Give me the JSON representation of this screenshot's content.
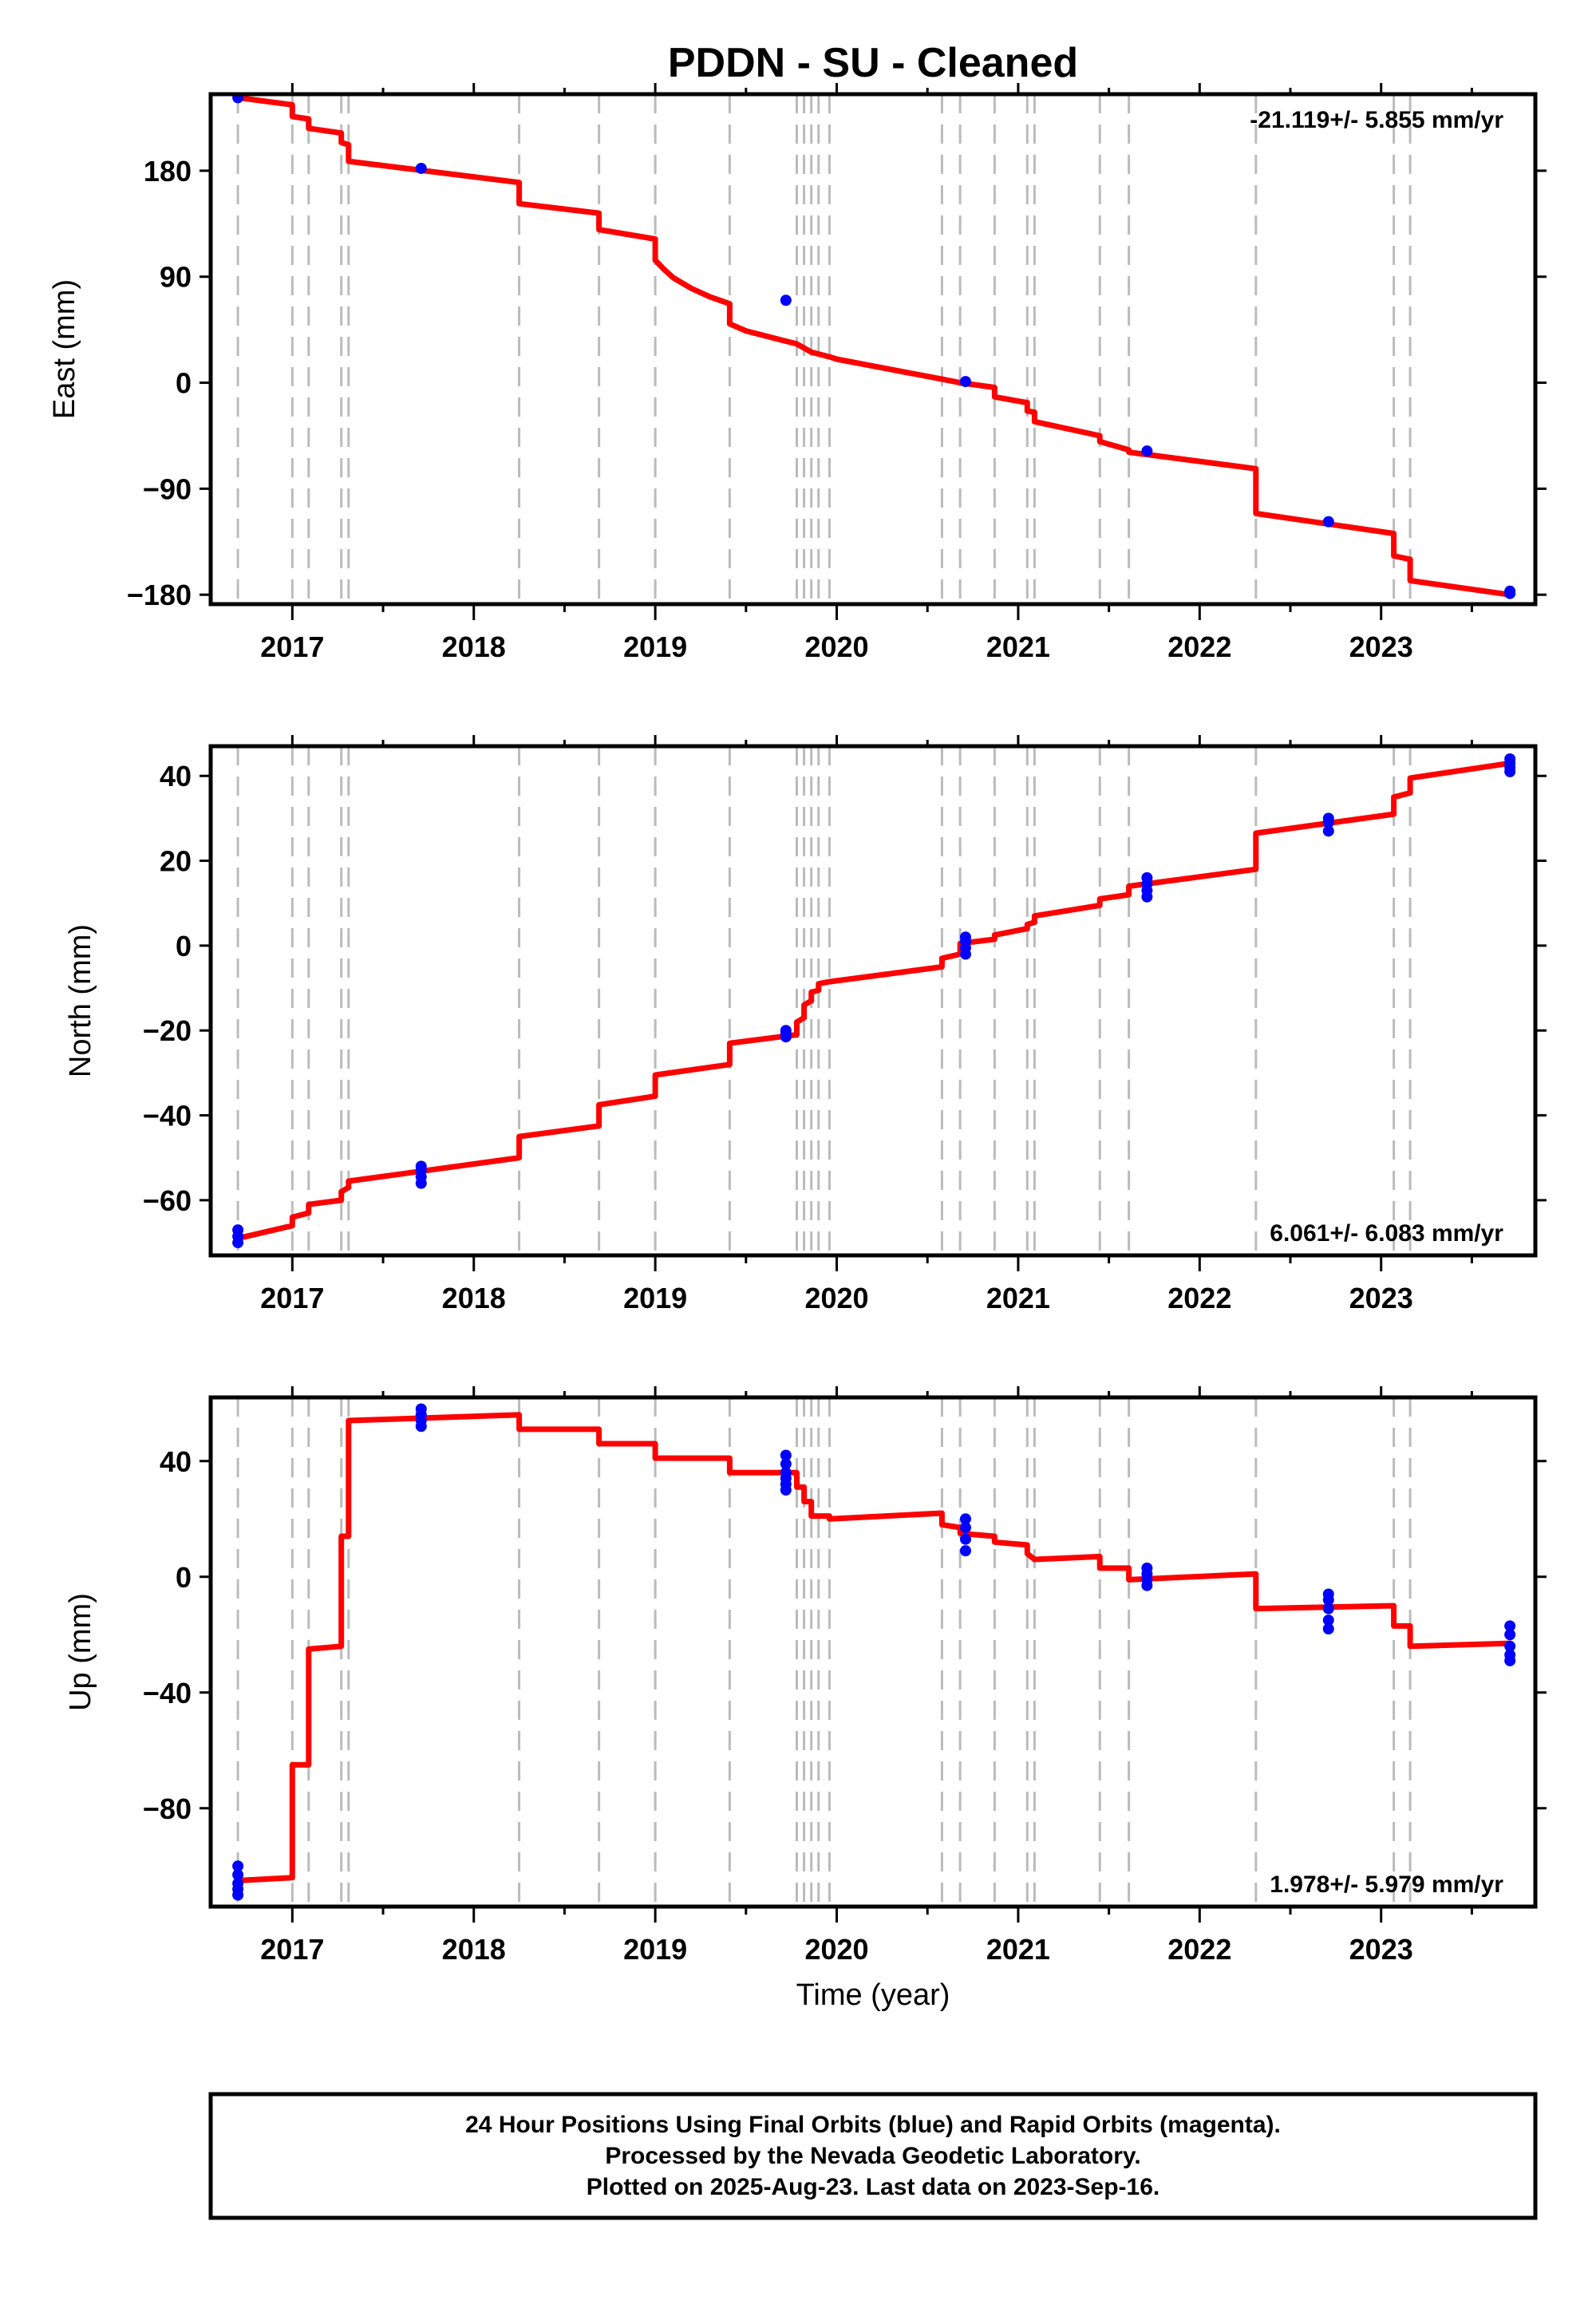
{
  "title": "PDDN  - SU - Cleaned",
  "x_axis_label": "Time (year)",
  "footer": {
    "line1": "24 Hour Positions Using Final Orbits (blue) and Rapid Orbits (magenta).",
    "line2": "Processed by the Nevada Geodetic Laboratory.",
    "line3": "Plotted on 2025-Aug-23. Last data on 2023-Sep-16."
  },
  "colors": {
    "model_line": "#ff0000",
    "final_orbit_points": "#0000ff",
    "event_lines": "#bbbbbb",
    "frame": "#000000"
  },
  "chart_data": [
    {
      "type": "line",
      "panel": "east",
      "ylabel": "East (mm)",
      "rate_label": "-21.119+/- 5.855 mm/yr",
      "rate_position": "top-right",
      "xlim": [
        2016.55,
        2023.85
      ],
      "ylim": [
        -188,
        245
      ],
      "x_ticks": [
        2017,
        2018,
        2019,
        2020,
        2021,
        2022,
        2023
      ],
      "y_ticks": [
        180,
        90,
        0,
        -90,
        -180
      ],
      "y_tick_labels": [
        "180",
        "90",
        "0",
        "−90",
        "−180"
      ],
      "event_lines_x": [
        2016.7,
        2017.0,
        2017.09,
        2017.27,
        2017.31,
        2018.25,
        2018.69,
        2019.0,
        2019.41,
        2019.78,
        2019.82,
        2019.86,
        2019.9,
        2019.96,
        2020.58,
        2020.68,
        2020.87,
        2021.05,
        2021.09,
        2021.45,
        2021.61,
        2022.31,
        2023.07,
        2023.16
      ],
      "series": [
        {
          "name": "Final Orbits",
          "kind": "points",
          "x": [
            2016.7,
            2017.71,
            2019.72,
            2020.71,
            2021.71,
            2022.71,
            2023.71,
            2023.71
          ],
          "y": [
            242,
            182,
            70,
            1,
            -58,
            -118,
            -179,
            -177
          ]
        },
        {
          "name": "model",
          "kind": "line",
          "x": [
            2016.7,
            2017.0,
            2017.0,
            2017.09,
            2017.09,
            2017.27,
            2017.27,
            2017.31,
            2017.31,
            2018.25,
            2018.25,
            2018.69,
            2018.69,
            2019.0,
            2019.0,
            2019.05,
            2019.1,
            2019.2,
            2019.3,
            2019.41,
            2019.41,
            2019.5,
            2019.6,
            2019.7,
            2019.78,
            2019.86,
            2019.96,
            2020.0,
            2020.58,
            2020.68,
            2020.87,
            2020.87,
            2021.05,
            2021.05,
            2021.09,
            2021.09,
            2021.45,
            2021.45,
            2021.61,
            2021.61,
            2022.31,
            2022.31,
            2023.07,
            2023.07,
            2023.16,
            2023.16,
            2023.71
          ],
          "y": [
            242,
            236,
            226,
            224,
            216,
            212,
            204,
            202,
            188,
            170,
            152,
            144,
            130,
            122,
            104,
            96,
            89,
            80,
            73,
            67,
            50,
            44,
            40,
            36,
            33,
            26,
            22,
            20,
            3,
            0,
            -4,
            -12,
            -17,
            -24,
            -25,
            -33,
            -45,
            -50,
            -57,
            -59,
            -73,
            -111,
            -128,
            -147,
            -150,
            -168,
            -180
          ]
        }
      ]
    },
    {
      "type": "line",
      "panel": "north",
      "ylabel": "North (mm)",
      "rate_label": "6.061+/- 6.083 mm/yr",
      "rate_position": "bottom-right",
      "xlim": [
        2016.55,
        2023.85
      ],
      "ylim": [
        -73,
        47
      ],
      "x_ticks": [
        2017,
        2018,
        2019,
        2020,
        2021,
        2022,
        2023
      ],
      "y_ticks": [
        40,
        20,
        0,
        -20,
        -40,
        -60
      ],
      "y_tick_labels": [
        "40",
        "20",
        "0",
        "−20",
        "−40",
        "−60"
      ],
      "event_lines_x": [
        2016.7,
        2017.0,
        2017.09,
        2017.27,
        2017.31,
        2018.25,
        2018.69,
        2019.0,
        2019.41,
        2019.78,
        2019.82,
        2019.86,
        2019.9,
        2019.96,
        2020.58,
        2020.68,
        2020.87,
        2021.05,
        2021.09,
        2021.45,
        2021.61,
        2022.31,
        2023.07,
        2023.16
      ],
      "series": [
        {
          "name": "Final Orbits",
          "kind": "points",
          "x": [
            2016.7,
            2016.7,
            2016.7,
            2017.71,
            2017.71,
            2017.71,
            2017.71,
            2019.72,
            2019.72,
            2019.72,
            2020.71,
            2020.71,
            2020.71,
            2020.71,
            2021.71,
            2021.71,
            2021.71,
            2021.71,
            2022.71,
            2022.71,
            2022.71,
            2023.71,
            2023.71,
            2023.71,
            2023.71
          ],
          "y": [
            -67,
            -68.5,
            -70,
            -52,
            -53,
            -54.5,
            -56,
            -20,
            -20.7,
            -21.5,
            2,
            1,
            -0.5,
            -2,
            16,
            14.5,
            13,
            11.5,
            30,
            29,
            27,
            44,
            43,
            42,
            41
          ]
        },
        {
          "name": "model",
          "kind": "line",
          "x": [
            2016.7,
            2017.0,
            2017.0,
            2017.09,
            2017.09,
            2017.27,
            2017.27,
            2017.31,
            2017.31,
            2018.25,
            2018.25,
            2018.69,
            2018.69,
            2019.0,
            2019.0,
            2019.41,
            2019.41,
            2019.78,
            2019.78,
            2019.82,
            2019.82,
            2019.86,
            2019.86,
            2019.9,
            2019.9,
            2019.96,
            2019.96,
            2020.58,
            2020.58,
            2020.68,
            2020.68,
            2020.87,
            2020.87,
            2021.05,
            2021.05,
            2021.09,
            2021.09,
            2021.45,
            2021.45,
            2021.61,
            2021.61,
            2022.31,
            2022.31,
            2023.07,
            2023.07,
            2023.16,
            2023.16,
            2023.71
          ],
          "y": [
            -69,
            -66,
            -64,
            -63,
            -61,
            -60,
            -58,
            -57,
            -55.5,
            -50,
            -45,
            -42.5,
            -37.5,
            -35.5,
            -30.5,
            -28,
            -23,
            -21,
            -18,
            -17,
            -14,
            -13,
            -11,
            -10.5,
            -9,
            -8.5,
            -8.5,
            -5,
            -3,
            -2,
            0.5,
            1.5,
            2.5,
            4,
            5,
            5.5,
            7,
            9.5,
            11,
            12,
            14,
            18,
            26.5,
            31,
            35,
            36,
            39.5,
            43
          ]
        }
      ]
    },
    {
      "type": "line",
      "panel": "up",
      "ylabel": "Up (mm)",
      "rate_label": "1.978+/- 5.979 mm/yr",
      "rate_position": "bottom-right",
      "xlim": [
        2016.55,
        2023.85
      ],
      "ylim": [
        -114,
        62
      ],
      "x_ticks": [
        2017,
        2018,
        2019,
        2020,
        2021,
        2022,
        2023
      ],
      "y_ticks": [
        40,
        0,
        -40,
        -80
      ],
      "y_tick_labels": [
        "40",
        "0",
        "−40",
        "−80"
      ],
      "event_lines_x": [
        2016.7,
        2017.0,
        2017.09,
        2017.27,
        2017.31,
        2018.25,
        2018.69,
        2019.0,
        2019.41,
        2019.78,
        2019.82,
        2019.86,
        2019.9,
        2019.96,
        2020.58,
        2020.68,
        2020.87,
        2021.05,
        2021.09,
        2021.45,
        2021.61,
        2022.31,
        2023.07,
        2023.16
      ],
      "series": [
        {
          "name": "Final Orbits",
          "kind": "points",
          "x": [
            2016.7,
            2016.7,
            2016.7,
            2016.7,
            2016.7,
            2017.71,
            2017.71,
            2017.71,
            2017.71,
            2019.72,
            2019.72,
            2019.72,
            2019.72,
            2019.72,
            2019.72,
            2020.71,
            2020.71,
            2020.71,
            2020.71,
            2021.71,
            2021.71,
            2021.71,
            2021.71,
            2022.71,
            2022.71,
            2022.71,
            2022.71,
            2022.71,
            2023.71,
            2023.71,
            2023.71,
            2023.71,
            2023.71
          ],
          "y": [
            -100,
            -103,
            -106,
            -108,
            -110,
            58,
            56,
            54,
            52,
            42,
            39,
            36,
            34,
            32,
            30,
            20,
            17,
            13,
            9,
            3,
            1,
            -1,
            -3,
            -6,
            -8,
            -11,
            -15,
            -18,
            -17,
            -20,
            -24,
            -27,
            -29
          ]
        },
        {
          "name": "model",
          "kind": "line",
          "x": [
            2016.7,
            2017.0,
            2017.0,
            2017.09,
            2017.09,
            2017.27,
            2017.27,
            2017.31,
            2017.31,
            2018.25,
            2018.25,
            2018.69,
            2018.69,
            2019.0,
            2019.0,
            2019.41,
            2019.41,
            2019.78,
            2019.78,
            2019.82,
            2019.82,
            2019.86,
            2019.86,
            2019.96,
            2019.96,
            2020.58,
            2020.58,
            2020.68,
            2020.68,
            2020.87,
            2020.87,
            2021.05,
            2021.05,
            2021.09,
            2021.09,
            2021.45,
            2021.45,
            2021.61,
            2021.61,
            2022.31,
            2022.31,
            2023.07,
            2023.07,
            2023.16,
            2023.16,
            2023.71
          ],
          "y": [
            -105,
            -104,
            -65,
            -65,
            -25,
            -24,
            14,
            14,
            54,
            56,
            51,
            51,
            46,
            46,
            41,
            41,
            36,
            36,
            31,
            31,
            26,
            26,
            21,
            21,
            20,
            22,
            18,
            17,
            15,
            14,
            12,
            11,
            8,
            6,
            6,
            7,
            3,
            3,
            -1,
            1,
            -11,
            -10,
            -17,
            -17,
            -24,
            -23
          ]
        }
      ]
    }
  ]
}
